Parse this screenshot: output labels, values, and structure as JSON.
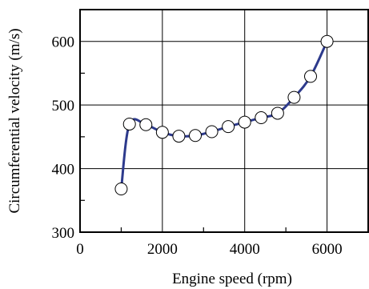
{
  "chart_data": {
    "type": "line",
    "xlabel": "Engine speed (rpm)",
    "ylabel": "Circumferential velocity (m/s)",
    "xlim": [
      0,
      7000
    ],
    "ylim": [
      300,
      650
    ],
    "x_ticks": [
      0,
      2000,
      4000,
      6000
    ],
    "y_ticks": [
      300,
      400,
      500,
      600
    ],
    "x_tick_labels": [
      "0",
      "2000",
      "4000",
      "6000"
    ],
    "y_tick_labels": [
      "300",
      "400",
      "500",
      "600"
    ],
    "grid": true,
    "series": [
      {
        "color": "#2d3a8c",
        "marker": "circle-open",
        "x": [
          1000,
          1200,
          1600,
          2000,
          2400,
          2800,
          3200,
          3600,
          4000,
          4400,
          4800,
          5200,
          5600,
          6000
        ],
        "y": [
          368,
          470,
          469,
          457,
          451,
          452,
          458,
          466,
          473,
          480,
          487,
          512,
          545,
          600
        ]
      }
    ]
  }
}
